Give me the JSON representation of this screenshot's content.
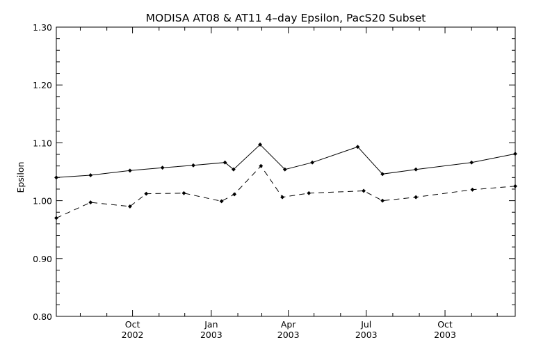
{
  "chart_data": {
    "type": "line",
    "title": "MODISA AT08 & AT11 4–day Epsilon, PacS20 Subset",
    "xlabel": "",
    "ylabel": "Epsilon",
    "ylim": [
      0.8,
      1.3
    ],
    "yticks": [
      "0.80",
      "0.90",
      "1.00",
      "1.10",
      "1.20",
      "1.30"
    ],
    "xlim": [
      "2002-07-04",
      "2003-12-22"
    ],
    "xticks": [
      {
        "date": "2002-10-01",
        "month": "Oct",
        "year": "2002"
      },
      {
        "date": "2003-01-01",
        "month": "Jan",
        "year": "2003"
      },
      {
        "date": "2003-04-01",
        "month": "Apr",
        "year": "2003"
      },
      {
        "date": "2003-07-01",
        "month": "Jul",
        "year": "2003"
      },
      {
        "date": "2003-10-01",
        "month": "Oct",
        "year": "2003"
      }
    ],
    "grid": false,
    "series": [
      {
        "style": "solid",
        "x": [
          "2002-07-04",
          "2002-08-13",
          "2002-09-28",
          "2002-11-05",
          "2002-12-11",
          "2003-01-17",
          "2003-01-27",
          "2003-02-27",
          "2003-03-28",
          "2003-04-29",
          "2003-06-21",
          "2003-07-20",
          "2003-08-28",
          "2003-11-01",
          "2003-12-22"
        ],
        "y": [
          1.04,
          1.044,
          1.052,
          1.057,
          1.061,
          1.066,
          1.054,
          1.097,
          1.054,
          1.066,
          1.093,
          1.046,
          1.054,
          1.066,
          1.081
        ]
      },
      {
        "style": "dashed",
        "x": [
          "2002-07-04",
          "2002-08-13",
          "2002-09-28",
          "2002-10-17",
          "2002-11-30",
          "2003-01-13",
          "2003-01-28",
          "2003-02-28",
          "2003-03-25",
          "2003-04-25",
          "2003-06-28",
          "2003-07-20",
          "2003-08-28",
          "2003-11-02",
          "2003-12-22"
        ],
        "y": [
          0.97,
          0.997,
          0.99,
          1.012,
          1.013,
          0.999,
          1.011,
          1.06,
          1.006,
          1.013,
          1.017,
          1.0,
          1.006,
          1.019,
          1.025
        ]
      }
    ]
  }
}
